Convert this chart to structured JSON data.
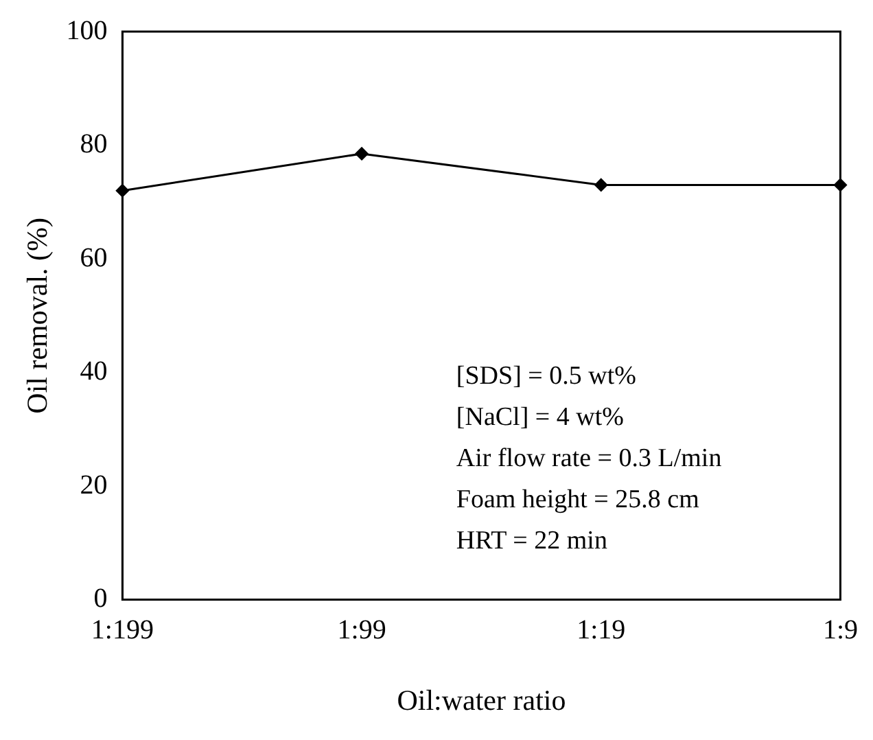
{
  "chart_data": {
    "type": "line",
    "xlabel": "Oil:water ratio",
    "ylabel": "Oil removal. (%)",
    "categories": [
      "1:199",
      "1:99",
      "1:19",
      "1:9"
    ],
    "series": [
      {
        "color": "#000000",
        "values": [
          72,
          78.5,
          73,
          73
        ]
      }
    ],
    "ylim": [
      0,
      100
    ],
    "yticks": [
      0,
      20,
      40,
      60,
      80,
      100
    ],
    "grid": false,
    "legend": false,
    "marker": "diamond",
    "line_style": "solid",
    "annotations": [
      "[SDS] = 0.5 wt%",
      "[NaCl] = 4 wt%",
      "Air flow rate = 0.3 L/min",
      "Foam height = 25.8 cm",
      "HRT = 22 min"
    ]
  }
}
